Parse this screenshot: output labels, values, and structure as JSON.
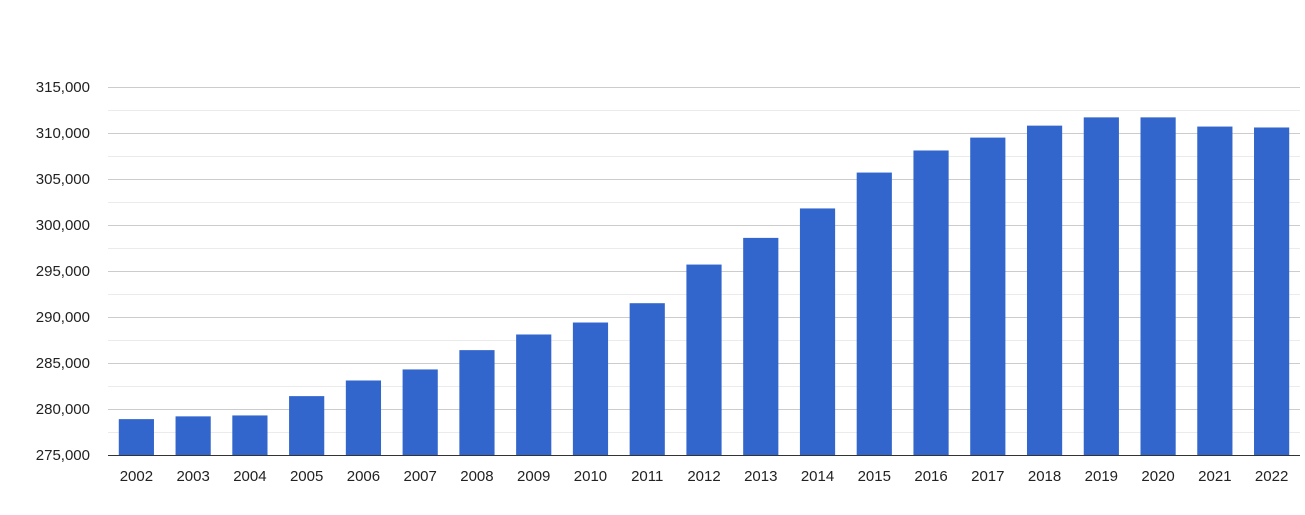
{
  "chart_data": {
    "type": "bar",
    "title": "",
    "xlabel": "",
    "ylabel": "",
    "categories": [
      "2002",
      "2003",
      "2004",
      "2005",
      "2006",
      "2007",
      "2008",
      "2009",
      "2010",
      "2011",
      "2012",
      "2013",
      "2014",
      "2015",
      "2016",
      "2017",
      "2018",
      "2019",
      "2020",
      "2021",
      "2022"
    ],
    "values": [
      278900,
      279200,
      279300,
      281400,
      283100,
      284300,
      286400,
      288100,
      289400,
      291500,
      295700,
      298600,
      301800,
      305700,
      308100,
      309500,
      310800,
      311700,
      311700,
      310700,
      310600
    ],
    "ylim": [
      275000,
      315000
    ],
    "yticks": [
      275000,
      280000,
      285000,
      290000,
      295000,
      300000,
      305000,
      310000,
      315000
    ],
    "ytick_labels": [
      "275,000",
      "280,000",
      "285,000",
      "290,000",
      "295,000",
      "300,000",
      "305,000",
      "310,000",
      "315,000"
    ],
    "grid": true,
    "legend": "none",
    "colors": {
      "bar": "#3366cc",
      "major_grid": "#cccccc",
      "minor_grid": "#ebebeb",
      "axis": "#333333",
      "text": "#222222"
    }
  }
}
